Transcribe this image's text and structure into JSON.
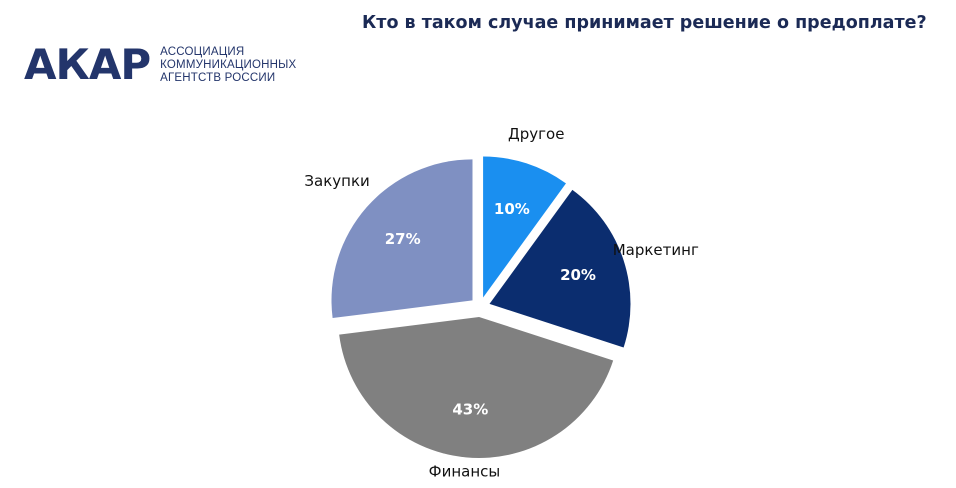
{
  "header": {
    "title": "Кто в таком случае принимает решение о предоплате?"
  },
  "logo": {
    "mark": "АКАР",
    "line1": "АССОЦИАЦИЯ",
    "line2": "КОММУНИКАЦИОННЫХ",
    "line3": "АГЕНТСТВ РОССИИ"
  },
  "chart_data": {
    "type": "pie",
    "categories": [
      "Другое",
      "Маркетинг",
      "Финансы",
      "Закупки"
    ],
    "values": [
      10,
      20,
      43,
      27
    ],
    "labels": [
      "10%",
      "20%",
      "43%",
      "27%"
    ],
    "colors": [
      "#1a8ff0",
      "#0b2d6f",
      "#808080",
      "#7f90c2"
    ],
    "exploded": true,
    "start": "12 o'clock",
    "direction": "clockwise",
    "legend": "none"
  }
}
